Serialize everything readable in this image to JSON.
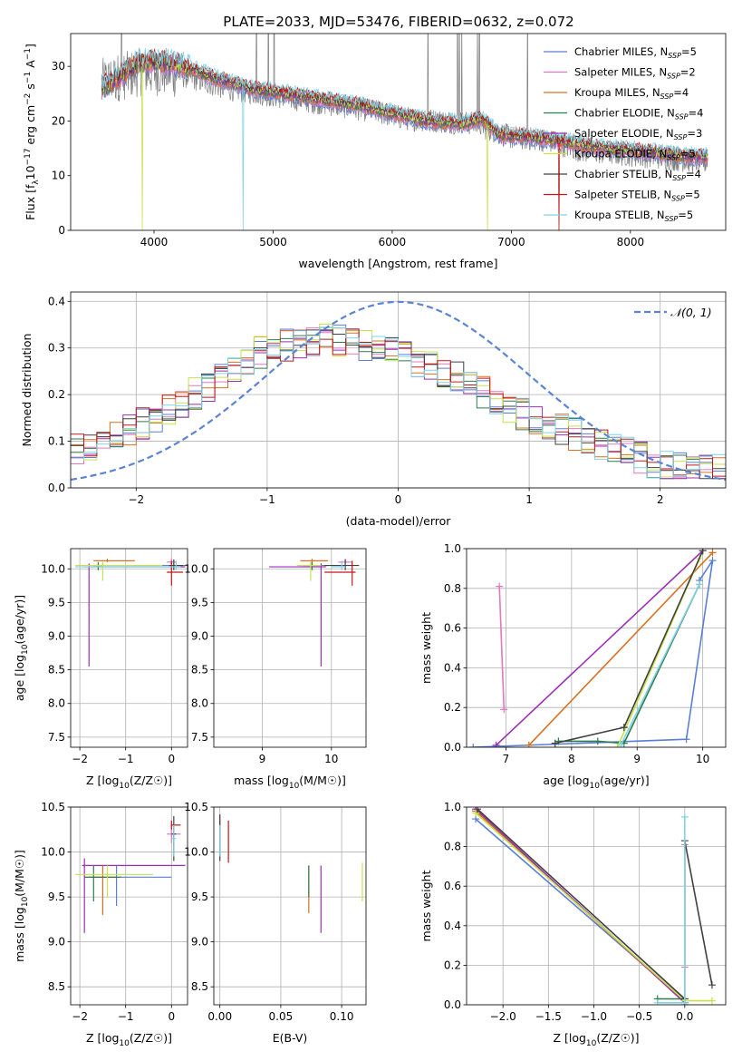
{
  "figure": {
    "title": "PLATE=2033, MJD=53476, FIBERID=0632, z=0.072"
  },
  "series": [
    {
      "name": "Chabrier MILES",
      "nssp": "5",
      "color": "#5b7fd6"
    },
    {
      "name": "Salpeter MILES",
      "nssp": "2",
      "color": "#e377c2"
    },
    {
      "name": "Kroupa MILES",
      "nssp": "4",
      "color": "#d9701f"
    },
    {
      "name": "Chabrier ELODIE",
      "nssp": "4",
      "color": "#2e7d4b"
    },
    {
      "name": "Salpeter ELODIE",
      "nssp": "3",
      "color": "#9b2fb5"
    },
    {
      "name": "Kroupa ELODIE",
      "nssp": "5",
      "color": "#c6e34a"
    },
    {
      "name": "Chabrier STELIB",
      "nssp": "4",
      "color": "#404040"
    },
    {
      "name": "Salpeter STELIB",
      "nssp": "5",
      "color": "#c01818"
    },
    {
      "name": "Kroupa STELIB",
      "nssp": "5",
      "color": "#7fd3e6"
    }
  ],
  "chart_data": [
    {
      "id": "spectrum",
      "type": "line",
      "xlabel": "wavelength [Angstrom, rest frame]",
      "ylabel": "Flux [f",
      "xlim": [
        3300,
        8800
      ],
      "ylim": [
        0,
        36
      ],
      "xticks": [
        4000,
        5000,
        6000,
        7000,
        8000
      ],
      "yticks": [
        0,
        10,
        20,
        30
      ],
      "grid": false,
      "legend": "top-right",
      "observed_anchors": [
        [
          3550,
          27
        ],
        [
          3700,
          28
        ],
        [
          3900,
          29
        ],
        [
          4100,
          29
        ],
        [
          4300,
          28
        ],
        [
          4600,
          26
        ],
        [
          4900,
          25
        ],
        [
          5200,
          24
        ],
        [
          5500,
          23
        ],
        [
          5800,
          22
        ],
        [
          6100,
          20.5
        ],
        [
          6400,
          20
        ],
        [
          6700,
          19.5
        ],
        [
          7000,
          17
        ],
        [
          7300,
          16.5
        ],
        [
          7600,
          14.5
        ],
        [
          7900,
          14
        ],
        [
          8200,
          13.5
        ],
        [
          8600,
          12.5
        ]
      ],
      "model_anchors": [
        [
          3550,
          26
        ],
        [
          3700,
          28
        ],
        [
          3850,
          30.5
        ],
        [
          4000,
          31
        ],
        [
          4200,
          30.5
        ],
        [
          4500,
          28
        ],
        [
          4800,
          26
        ],
        [
          5100,
          25
        ],
        [
          5400,
          24
        ],
        [
          5700,
          23
        ],
        [
          6000,
          21.5
        ],
        [
          6300,
          20
        ],
        [
          6600,
          19.5
        ],
        [
          6750,
          20.5
        ],
        [
          6900,
          17.5
        ],
        [
          7200,
          17
        ],
        [
          7500,
          16
        ],
        [
          7800,
          15
        ],
        [
          8100,
          14.5
        ],
        [
          8500,
          13.5
        ]
      ],
      "dropouts": [
        {
          "series": 5,
          "x": 3900
        },
        {
          "series": 8,
          "x": 4750
        },
        {
          "series": 5,
          "x": 6800
        },
        {
          "series": 7,
          "x": 7400
        }
      ],
      "emission_lines": [
        3727,
        4861,
        4959,
        5007,
        6300,
        6548,
        6563,
        6584,
        6717,
        6731,
        7135
      ]
    },
    {
      "id": "residuals",
      "type": "line",
      "xlabel": "(data-model)/error",
      "ylabel": "Normed distribution",
      "xlim": [
        -2.5,
        2.5
      ],
      "ylim": [
        0,
        0.42
      ],
      "xticks": [
        -2,
        -1,
        0,
        1,
        2
      ],
      "yticks": [
        0.0,
        0.1,
        0.2,
        0.3,
        0.4
      ],
      "grid": true,
      "legend": "top-right",
      "normal_label": "𝒩(0, 1)",
      "bin_width": 0.1,
      "envelope": [
        [
          -2.5,
          0.08
        ],
        [
          -2.0,
          0.13
        ],
        [
          -1.5,
          0.21
        ],
        [
          -1.0,
          0.3
        ],
        [
          -0.5,
          0.32
        ],
        [
          0.0,
          0.29
        ],
        [
          0.5,
          0.23
        ],
        [
          1.0,
          0.15
        ],
        [
          1.5,
          0.1
        ],
        [
          2.0,
          0.05
        ],
        [
          2.5,
          0.04
        ]
      ]
    },
    {
      "id": "age_vs_Z",
      "type": "scatter",
      "xlabel": "Z [log",
      "ylabel": "age  [log",
      "xlim": [
        -2.2,
        0.35
      ],
      "ylim": [
        7.35,
        10.3
      ],
      "xticks": [
        -2,
        -1,
        0
      ],
      "yticks": [
        7.5,
        8.0,
        8.5,
        9.0,
        9.5,
        10.0
      ],
      "grid": true,
      "errorbars": [
        {
          "s": 0,
          "x": 0.0,
          "y": 10.05,
          "xl": -1.8,
          "xh": 0.3,
          "yl": 10.0,
          "yh": 10.12
        },
        {
          "s": 1,
          "x": 0.0,
          "y": 10.1,
          "xl": -0.1,
          "xh": 0.1,
          "yl": 10.08,
          "yh": 10.15
        },
        {
          "s": 2,
          "x": -1.4,
          "y": 10.12,
          "xl": -1.7,
          "xh": -0.8,
          "yl": 10.1,
          "yh": 10.15
        },
        {
          "s": 3,
          "x": -1.6,
          "y": 10.05,
          "xl": -1.7,
          "xh": -1.5,
          "yl": 9.98,
          "yh": 10.1
        },
        {
          "s": 4,
          "x": -1.8,
          "y": 10.03,
          "xl": -1.9,
          "xh": 0.3,
          "yl": 8.55,
          "yh": 10.08
        },
        {
          "s": 5,
          "x": -1.5,
          "y": 10.05,
          "xl": -2.1,
          "xh": -0.2,
          "yl": 9.82,
          "yh": 10.1
        },
        {
          "s": 6,
          "x": 0.05,
          "y": 10.05,
          "xl": -0.05,
          "xh": 0.25,
          "yl": 9.98,
          "yh": 10.14
        },
        {
          "s": 7,
          "x": 0.0,
          "y": 9.95,
          "xl": -0.1,
          "xh": 0.25,
          "yl": 9.75,
          "yh": 10.12
        },
        {
          "s": 8,
          "x": 0.1,
          "y": 10.03,
          "xl": -2.1,
          "xh": 0.2,
          "yl": 9.98,
          "yh": 10.12
        }
      ]
    },
    {
      "id": "age_vs_mass",
      "type": "scatter",
      "xlabel": "mass [log",
      "ylabel": "",
      "xlim": [
        8.3,
        10.5
      ],
      "ylim": [
        7.35,
        10.3
      ],
      "xticks": [
        9,
        10
      ],
      "yticks": [
        7.5,
        8.0,
        8.5,
        9.0,
        9.5,
        10.0
      ],
      "grid": true,
      "errorbars": [
        {
          "s": 0,
          "x": 9.72,
          "y": 10.05,
          "xl": 9.55,
          "xh": 9.95,
          "yl": 10.0,
          "yh": 10.12
        },
        {
          "s": 1,
          "x": 10.2,
          "y": 10.1,
          "xl": 10.1,
          "xh": 10.3,
          "yl": 10.08,
          "yh": 10.15
        },
        {
          "s": 2,
          "x": 9.72,
          "y": 10.12,
          "xl": 9.55,
          "xh": 9.95,
          "yl": 10.1,
          "yh": 10.15
        },
        {
          "s": 3,
          "x": 9.72,
          "y": 10.05,
          "xl": 9.6,
          "xh": 9.85,
          "yl": 9.98,
          "yh": 10.1
        },
        {
          "s": 4,
          "x": 9.85,
          "y": 10.03,
          "xl": 9.1,
          "xh": 9.92,
          "yl": 8.55,
          "yh": 10.08
        },
        {
          "s": 5,
          "x": 9.7,
          "y": 10.05,
          "xl": 9.5,
          "xh": 9.85,
          "yl": 9.82,
          "yh": 10.1
        },
        {
          "s": 6,
          "x": 10.2,
          "y": 10.05,
          "xl": 9.9,
          "xh": 10.4,
          "yl": 9.98,
          "yh": 10.14
        },
        {
          "s": 7,
          "x": 10.3,
          "y": 9.95,
          "xl": 9.9,
          "xh": 10.35,
          "yl": 9.75,
          "yh": 10.12
        },
        {
          "s": 8,
          "x": 10.15,
          "y": 10.03,
          "xl": 10.0,
          "xh": 10.2,
          "yl": 9.98,
          "yh": 10.12
        }
      ]
    },
    {
      "id": "massweight_vs_age",
      "type": "line",
      "xlabel": "age  [log",
      "ylabel": "mass weight",
      "xlim": [
        6.4,
        10.35
      ],
      "ylim": [
        0,
        1.0
      ],
      "xticks": [
        7,
        8,
        9,
        10
      ],
      "yticks": [
        0.0,
        0.2,
        0.4,
        0.6,
        0.8,
        1.0
      ],
      "grid": true,
      "lines": [
        {
          "s": 0,
          "x": [
            6.5,
            9.75,
            10.15,
            9.95
          ],
          "y": [
            0.0,
            0.04,
            0.94,
            0.84
          ]
        },
        {
          "s": 1,
          "x": 6.9,
          "y": 0.81,
          "x2": 6.97,
          "y2": 0.19
        },
        {
          "s": 2,
          "x": [
            7.35,
            10.15
          ],
          "y": [
            0.01,
            0.98
          ]
        },
        {
          "s": 3,
          "x": [
            7.8,
            8.4,
            8.8,
            9.95
          ],
          "y": [
            0.03,
            0.03,
            0.02,
            0.82
          ]
        },
        {
          "s": 4,
          "x": [
            6.85,
            10.0
          ],
          "y": [
            0.01,
            0.99
          ]
        },
        {
          "s": 5,
          "x": [
            8.7,
            9.95
          ],
          "y": [
            0.0,
            0.95
          ]
        },
        {
          "s": 6,
          "x": [
            7.75,
            8.8,
            10.0
          ],
          "y": [
            0.02,
            0.1,
            0.99
          ]
        },
        {
          "s": 8,
          "x": [
            8.75,
            9.95
          ],
          "y": [
            0.01,
            0.82
          ]
        }
      ]
    },
    {
      "id": "mass_vs_Z",
      "type": "scatter",
      "xlabel": "Z [log",
      "ylabel": "mass [log",
      "xlim": [
        -2.2,
        0.35
      ],
      "ylim": [
        8.3,
        10.5
      ],
      "xticks": [
        -2,
        -1,
        0
      ],
      "yticks": [
        8.5,
        9.0,
        9.5,
        10.0,
        10.5
      ],
      "grid": true,
      "errorbars": [
        {
          "s": 0,
          "x": -1.2,
          "y": 9.72,
          "xl": -1.9,
          "xh": 0.0,
          "yl": 9.4,
          "yh": 9.85
        },
        {
          "s": 1,
          "x": 0.0,
          "y": 10.2,
          "xl": -0.1,
          "xh": 0.2,
          "yl": 10.1,
          "yh": 10.3
        },
        {
          "s": 2,
          "x": -1.5,
          "y": 9.72,
          "xl": -1.8,
          "xh": -1.2,
          "yl": 9.3,
          "yh": 9.85
        },
        {
          "s": 3,
          "x": -1.7,
          "y": 9.72,
          "xl": -1.9,
          "xh": -1.1,
          "yl": 9.45,
          "yh": 9.85
        },
        {
          "s": 4,
          "x": -1.9,
          "y": 9.85,
          "xl": -1.95,
          "xh": 0.3,
          "yl": 9.1,
          "yh": 9.93
        },
        {
          "s": 5,
          "x": -1.4,
          "y": 9.75,
          "xl": -2.1,
          "xh": -0.4,
          "yl": 9.5,
          "yh": 9.85
        },
        {
          "s": 6,
          "x": 0.05,
          "y": 10.2,
          "xl": 0.0,
          "xh": 0.1,
          "yl": 9.9,
          "yh": 10.4
        },
        {
          "s": 7,
          "x": 0.0,
          "y": 10.3,
          "xl": 0.0,
          "xh": 0.2,
          "yl": 10.25,
          "yh": 10.35
        },
        {
          "s": 8,
          "x": 0.05,
          "y": 10.15,
          "xl": 0.0,
          "xh": 0.1,
          "yl": 9.95,
          "yh": 10.3
        }
      ]
    },
    {
      "id": "mass_vs_ebv",
      "type": "scatter",
      "xlabel": "E(B-V)",
      "ylabel": "",
      "xlim": [
        -0.005,
        0.12
      ],
      "ylim": [
        8.3,
        10.5
      ],
      "xticks": [
        0.0,
        0.05,
        0.1
      ],
      "xticklabels": [
        "0.00",
        "0.05",
        "0.10"
      ],
      "yticks": [
        8.5,
        9.0,
        9.5,
        10.0,
        10.5
      ],
      "grid": true,
      "errorbars": [
        {
          "s": 0,
          "x": 0.0,
          "y": 10.1,
          "yl": 9.95,
          "yh": 10.35
        },
        {
          "s": 1,
          "x": 0.0,
          "y": 10.2,
          "yl": 10.05,
          "yh": 10.4
        },
        {
          "s": 2,
          "x": 0.073,
          "y": 9.6,
          "yl": 9.32,
          "yh": 9.85
        },
        {
          "s": 3,
          "x": 0.073,
          "y": 9.72,
          "yl": 9.5,
          "yh": 9.85
        },
        {
          "s": 4,
          "x": 0.083,
          "y": 9.6,
          "yl": 9.1,
          "yh": 9.85
        },
        {
          "s": 5,
          "x": 0.117,
          "y": 9.65,
          "yl": 9.45,
          "yh": 9.88
        },
        {
          "s": 6,
          "x": 0.0,
          "y": 10.2,
          "yl": 9.9,
          "yh": 10.42
        },
        {
          "s": 7,
          "x": 0.007,
          "y": 10.1,
          "yl": 9.88,
          "yh": 10.35
        },
        {
          "s": 8,
          "x": 0.0,
          "y": 10.15,
          "yl": 9.95,
          "yh": 10.3
        }
      ]
    },
    {
      "id": "massweight_vs_Z",
      "type": "line",
      "xlabel": "Z [log",
      "ylabel": "mass weight",
      "xlim": [
        -2.4,
        0.45
      ],
      "ylim": [
        0,
        1.0
      ],
      "xticks": [
        -2.0,
        -1.5,
        -1.0,
        -0.5,
        0.0
      ],
      "xticklabels": [
        "−2.0",
        "−1.5",
        "−1.0",
        "−0.5",
        "0.0"
      ],
      "yticks": [
        0.0,
        0.2,
        0.4,
        0.6,
        0.8,
        1.0
      ],
      "grid": true,
      "lines": [
        {
          "s": 0,
          "x": [
            -2.3,
            0.0,
            0.0
          ],
          "y": [
            0.94,
            0.02,
            0.0
          ]
        },
        {
          "s": 1,
          "x": [
            0.0,
            0.0
          ],
          "y": [
            0.19,
            0.81
          ]
        },
        {
          "s": 2,
          "x": [
            -2.3,
            0.0
          ],
          "y": [
            0.98,
            0.01
          ]
        },
        {
          "s": 3,
          "x": [
            -0.3,
            0.0
          ],
          "y": [
            0.03,
            0.03
          ]
        },
        {
          "s": 4,
          "x": [
            -2.3,
            0.0
          ],
          "y": [
            0.99,
            0.01
          ]
        },
        {
          "s": 5,
          "x": [
            -2.3,
            0.0,
            0.3
          ],
          "y": [
            0.97,
            0.02,
            0.02
          ]
        },
        {
          "s": 6,
          "x": [
            -2.28,
            0.0,
            0.0,
            0.3
          ],
          "y": [
            0.99,
            0.03,
            0.83,
            0.1
          ]
        },
        {
          "s": 8,
          "x": [
            0.0,
            0.0,
            -0.3
          ],
          "y": [
            0.95,
            0.01,
            0.01
          ]
        }
      ]
    }
  ]
}
